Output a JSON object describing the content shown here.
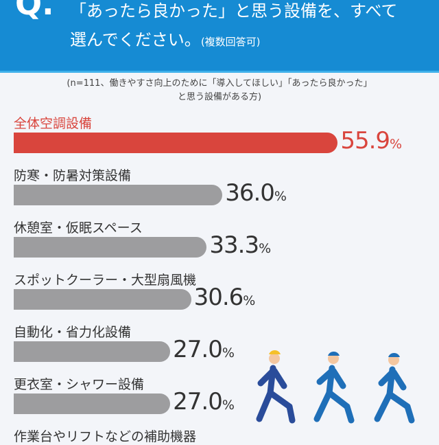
{
  "header": {
    "q_mark": "Q.",
    "line1": "「あったら良かった」と思う設備を、すべて",
    "line2": "選んでください。",
    "sub": "(複数回答可)"
  },
  "note": {
    "line1": "(n=111、働きやすさ向上のために「導入してほしい」「あったら良かった」",
    "line2": "と思う設備がある方)"
  },
  "colors": {
    "header": "#168bd3",
    "highlight": "#d9453d",
    "bar": "#9d9d9f"
  },
  "chart_data": {
    "type": "bar",
    "orientation": "horizontal",
    "unit": "%",
    "categories": [
      "全体空調設備",
      "防寒・防暑対策設備",
      "休憩室・仮眠スペース",
      "スポットクーラー・大型扇風機",
      "自動化・省力化設備",
      "更衣室・シャワー設備",
      "作業台やリフトなどの補助機器"
    ],
    "values": [
      55.9,
      36.0,
      33.3,
      30.6,
      27.0,
      27.0,
      null
    ],
    "labels": [
      "55.9",
      "36.0",
      "33.3",
      "30.6",
      "27.0",
      "27.0",
      ""
    ],
    "highlight_index": 0
  }
}
